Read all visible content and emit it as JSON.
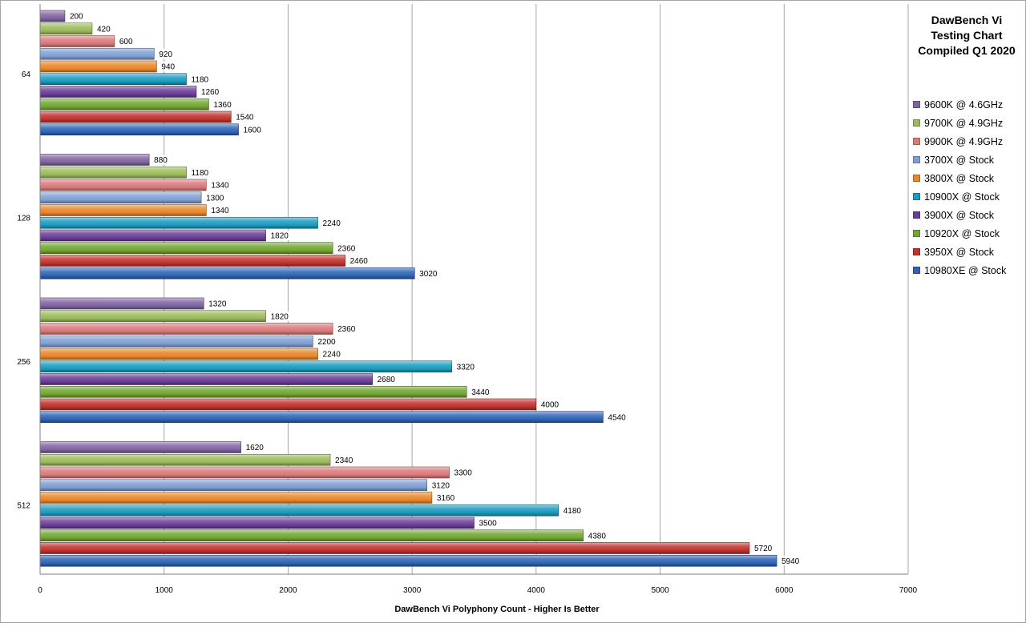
{
  "chart_data": {
    "type": "bar",
    "orientation": "horizontal",
    "title": [
      "DawBench Vi",
      "Testing Chart",
      "Compiled Q1 2020"
    ],
    "xlabel": "DawBench Vi Polyphony Count  - Higher Is Better",
    "ylabel": "",
    "xlim": [
      0,
      7000
    ],
    "x_ticks": [
      0,
      1000,
      2000,
      3000,
      4000,
      5000,
      6000,
      7000
    ],
    "grid": true,
    "legend_position": "right",
    "categories": [
      "64",
      "128",
      "256",
      "512"
    ],
    "series": [
      {
        "name": "9600K @ 4.6GHz",
        "color": "#8064a2",
        "values": [
          200,
          880,
          1320,
          1620
        ]
      },
      {
        "name": "9700K @ 4.9GHz",
        "color": "#9bbb59",
        "values": [
          420,
          1180,
          1820,
          2340
        ]
      },
      {
        "name": "9900K @ 4.9GHz",
        "color": "#d9797a",
        "values": [
          600,
          1340,
          2360,
          3300
        ]
      },
      {
        "name": "3700X @ Stock",
        "color": "#7f9fd3",
        "values": [
          920,
          1300,
          2200,
          3120
        ]
      },
      {
        "name": "3800X @ Stock",
        "color": "#e8862a",
        "values": [
          940,
          1340,
          2240,
          3160
        ]
      },
      {
        "name": "10900X @ Stock",
        "color": "#1a9bbf",
        "values": [
          1180,
          2240,
          3320,
          4180
        ]
      },
      {
        "name": "3900X @ Stock",
        "color": "#6a3e97",
        "values": [
          1260,
          1820,
          2680,
          3500
        ]
      },
      {
        "name": "10920X @ Stock",
        "color": "#71a632",
        "values": [
          1360,
          2360,
          3440,
          4380
        ]
      },
      {
        "name": "3950X @ Stock",
        "color": "#c0322f",
        "values": [
          1540,
          2460,
          4000,
          5720
        ]
      },
      {
        "name": "10980XE @ Stock",
        "color": "#2e64b5",
        "values": [
          1600,
          3020,
          4540,
          5940
        ]
      }
    ]
  }
}
